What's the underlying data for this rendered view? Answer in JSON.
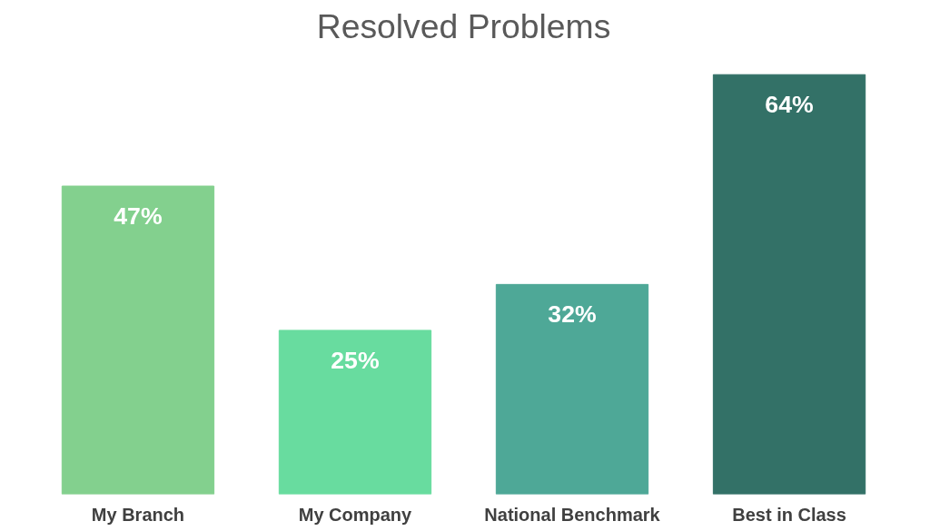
{
  "chart_data": {
    "type": "bar",
    "title": "Resolved Problems",
    "categories": [
      "My Branch",
      "My Company",
      "National Benchmark",
      "Best in Class"
    ],
    "values": [
      47,
      25,
      32,
      64
    ],
    "colors": [
      "#83d08e",
      "#68dc9f",
      "#4ea897",
      "#337167"
    ],
    "value_labels": [
      "47%",
      "25%",
      "32%",
      "64%"
    ]
  }
}
